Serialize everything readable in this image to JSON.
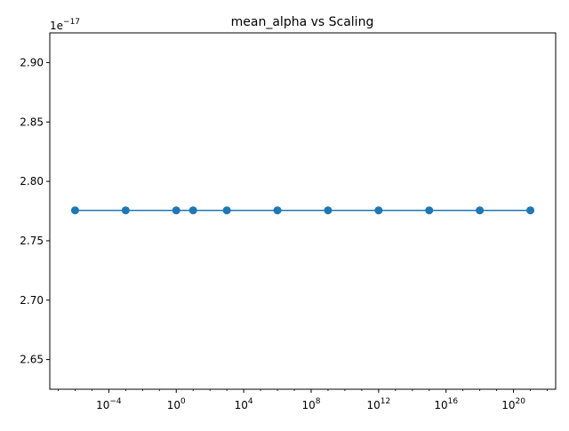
{
  "chart_data": {
    "type": "line",
    "title": "mean_alpha vs Scaling",
    "xlabel": "",
    "ylabel": "",
    "x_scale": "log",
    "x": [
      1e-06,
      0.001,
      1,
      10,
      1000,
      1000000,
      1000000000,
      1000000000000,
      1000000000000000,
      1e+18,
      1e+21
    ],
    "series": [
      {
        "values": [
          2.7756e-17,
          2.7756e-17,
          2.7756e-17,
          2.7756e-17,
          2.7756e-17,
          2.7756e-17,
          2.7756e-17,
          2.7756e-17,
          2.7756e-17,
          2.7756e-17,
          2.7756e-17
        ],
        "color": "#1f77b4",
        "marker": "circle"
      }
    ],
    "xlim_log10": [
      -7.5,
      22.5
    ],
    "ylim": [
      2.625e-17,
      2.925e-17
    ],
    "x_ticks": [
      {
        "base": "10",
        "exp": "−4",
        "log10": -4
      },
      {
        "base": "10",
        "exp": "0",
        "log10": 0
      },
      {
        "base": "10",
        "exp": "4",
        "log10": 4
      },
      {
        "base": "10",
        "exp": "8",
        "log10": 8
      },
      {
        "base": "10",
        "exp": "12",
        "log10": 12
      },
      {
        "base": "10",
        "exp": "16",
        "log10": 16
      },
      {
        "base": "10",
        "exp": "20",
        "log10": 20
      }
    ],
    "y_ticks": [
      {
        "label": "2.65",
        "value": 2.65
      },
      {
        "label": "2.70",
        "value": 2.7
      },
      {
        "label": "2.75",
        "value": 2.75
      },
      {
        "label": "2.80",
        "value": 2.8
      },
      {
        "label": "2.85",
        "value": 2.85
      },
      {
        "label": "2.90",
        "value": 2.9
      }
    ],
    "y_offset_label": {
      "base": "1e",
      "exp": "−17"
    },
    "grid": false,
    "legend": "none"
  }
}
